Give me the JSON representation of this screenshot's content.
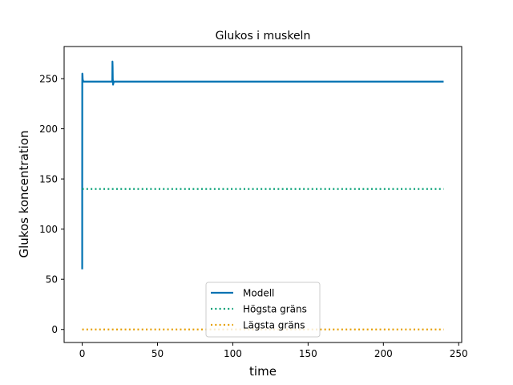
{
  "chart_data": {
    "type": "line",
    "title": "Glukos i muskeln",
    "xlabel": "time",
    "ylabel": "Glukos koncentration",
    "xlim": [
      -12,
      252
    ],
    "ylim": [
      -13,
      282
    ],
    "xticks": [
      0,
      50,
      100,
      150,
      200,
      250
    ],
    "yticks": [
      0,
      50,
      100,
      150,
      200,
      250
    ],
    "legend_position": "bottom-center",
    "grid": false,
    "series": [
      {
        "name": "Modell",
        "color": "#0072B2",
        "style": "solid",
        "x": [
          0,
          0.02,
          0.05,
          0.1,
          0.2,
          0.3,
          0.5,
          1,
          2,
          5,
          10,
          15,
          19.8,
          20,
          20.1,
          20.2,
          20.3,
          20.5,
          20.8,
          21,
          22,
          25,
          30,
          50,
          100,
          150,
          200,
          240
        ],
        "y": [
          60,
          150,
          245,
          255,
          254,
          250,
          248,
          247,
          247,
          247,
          247,
          247,
          247,
          248,
          267,
          262,
          250,
          244,
          246,
          247,
          247,
          247,
          247,
          247,
          247,
          247,
          247,
          247
        ]
      },
      {
        "name": "Högsta gräns",
        "color": "#009E73",
        "style": "dotted",
        "x": [
          0,
          240
        ],
        "y": [
          140,
          140
        ]
      },
      {
        "name": "Lägsta gräns",
        "color": "#E69F00",
        "style": "dotted",
        "x": [
          0,
          240
        ],
        "y": [
          0,
          0
        ]
      }
    ]
  }
}
